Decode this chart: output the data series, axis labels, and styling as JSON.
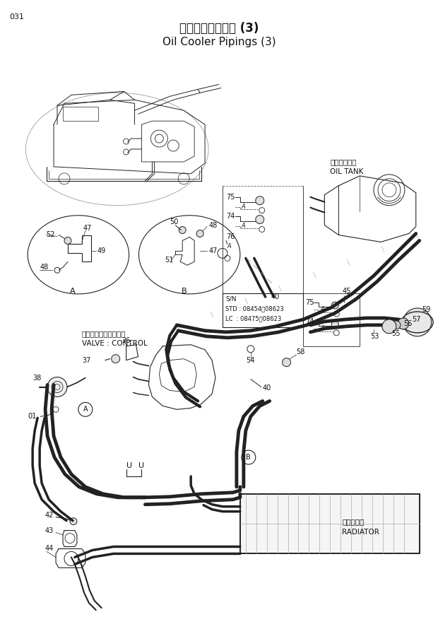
{
  "page_num": "031",
  "title_japanese": "オイルクーラ配管 (3)",
  "title_english": "Oil Cooler Pipings (3)",
  "bg_color": "#ffffff",
  "line_color": "#222222",
  "text_color": "#111111",
  "fig_width": 6.2,
  "fig_height": 8.73,
  "dpi": 100,
  "oil_tank_label_jp": "オイルタンク",
  "oil_tank_label_en": "OIL TANK",
  "valve_label_jp": "バルブ：コントロール",
  "valve_label_en": "VALVE : CONTROL",
  "radiator_label_jp": "ラジェータ",
  "radiator_label_en": "RADIATOR",
  "sn_text": [
    "S/N",
    "STD : 08454～08623",
    "LC  : 08475～08623"
  ]
}
